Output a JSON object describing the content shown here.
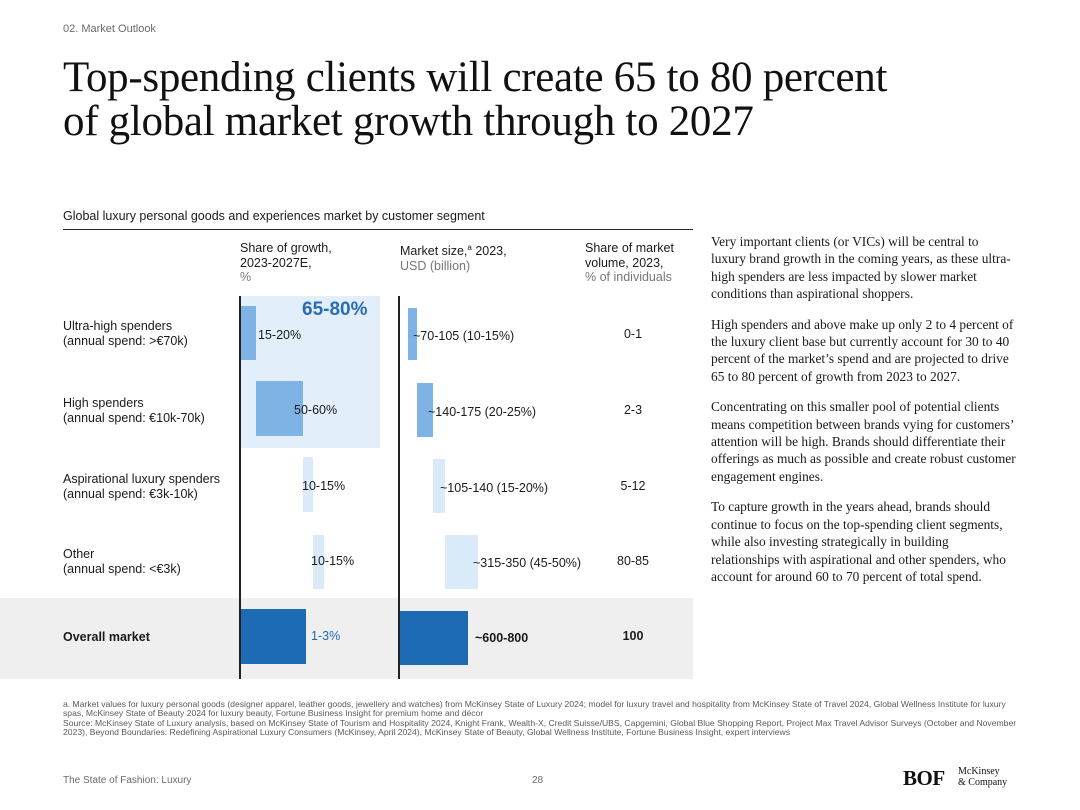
{
  "section_label": "02. Market Outlook",
  "title_lines": [
    "Top-spending clients will create 65 to 80 percent",
    "of global market growth through to 2027"
  ],
  "chart_data": {
    "type": "bar",
    "title": "Global luxury personal goods and experiences market by customer segment",
    "columns": {
      "growth": {
        "label_1": "Share of growth,",
        "label_2": "2023-2027E,",
        "unit": "%"
      },
      "market": {
        "label_1": "Market size,",
        "sup": "a",
        "label_1b": " 2023,",
        "unit": "USD (billion)"
      },
      "volume": {
        "label_1": "Share of market",
        "label_2": "volume, 2023,",
        "unit": "% of individuals"
      }
    },
    "highlight_label": "65-80%",
    "segments": [
      {
        "name": "Ultra-high spenders",
        "sub": "(annual spend: >€70k)",
        "growth_range": [
          15,
          20
        ],
        "growth_label": "15-20%",
        "market_range": [
          70,
          105
        ],
        "market_label": "~70-105 (10-15%)",
        "volume_label": "0-1"
      },
      {
        "name": "High spenders",
        "sub": "(annual spend: €10k-70k)",
        "growth_range": [
          50,
          60
        ],
        "growth_label": "50-60%",
        "market_range": [
          140,
          175
        ],
        "market_label": "~140-175 (20-25%)",
        "volume_label": "2-3"
      },
      {
        "name": "Aspirational luxury spenders",
        "sub": "(annual spend: €3k-10k)",
        "growth_range": [
          10,
          15
        ],
        "growth_label": "10-15%",
        "market_range": [
          105,
          140
        ],
        "market_label": "~105-140 (15-20%)",
        "volume_label": "5-12"
      },
      {
        "name": "Other",
        "sub": "(annual spend: <€3k)",
        "growth_range": [
          10,
          15
        ],
        "growth_label": "10-15%",
        "market_range": [
          315,
          350
        ],
        "market_label": "~315-350 (45-50%)",
        "volume_label": "80-85"
      }
    ],
    "overall": {
      "name": "Overall market",
      "growth_label": "1-3%",
      "market_label": "~600-800",
      "volume_label": "100"
    },
    "colors": {
      "ultra": "#7fb2e5",
      "high": "#7fb2e5",
      "aspirational": "#dbeaf8",
      "other": "#dbeaf8",
      "overall": "#1d6bb5",
      "highlight": "#e2eef9"
    }
  },
  "body_paragraphs": [
    "Very important clients (or VICs) will be central to luxury brand growth in the coming years, as these ultra-high spenders are less impacted by slower market conditions than aspirational shoppers.",
    "High spenders and above make up only 2 to 4 percent of the luxury client base but currently account for 30 to 40 percent of the market’s spend and are projected to drive 65 to 80 percent of growth from 2023 to 2027.",
    "Concentrating on this smaller pool of potential clients means competition between brands vying for customers’ attention will be high. Brands should differentiate their offerings as much as possible and create robust customer engagement engines.",
    "To capture growth in the years ahead, brands should continue to focus on the top-spending client segments, while also investing strategically in building relationships with aspirational and other spenders, who account for around 60 to 70 percent of total spend."
  ],
  "footnote_a": "a. Market values for luxury personal goods (designer apparel, leather goods, jewellery and watches) from McKinsey State of Luxury 2024; model for luxury travel and hospitality from McKinsey State of Travel 2024, Global Wellness Institute for luxury spas, McKinsey State of Beauty 2024 for luxury beauty, Fortune Business Insight for premium home and décor",
  "source": "Source: McKinsey State of Luxury analysis, based on McKinsey State of Tourism and Hospitality 2024, Knight Frank, Wealth-X, Credit Suisse/UBS, Capgemini, Global Blue Shopping Report, Project Max Travel Advisor Surveys (October and November 2023), Beyond Boundaries: Redefining Aspirational Luxury Consumers (McKinsey, April 2024), McKinsey State of Beauty, Global Wellness Institute, Fortune Business Insight, expert interviews",
  "footer": {
    "publication": "The State of Fashion: Luxury",
    "page": "28",
    "logo_bof": "BOF",
    "logo_mck_1": "McKinsey",
    "logo_mck_2": "& Company"
  }
}
